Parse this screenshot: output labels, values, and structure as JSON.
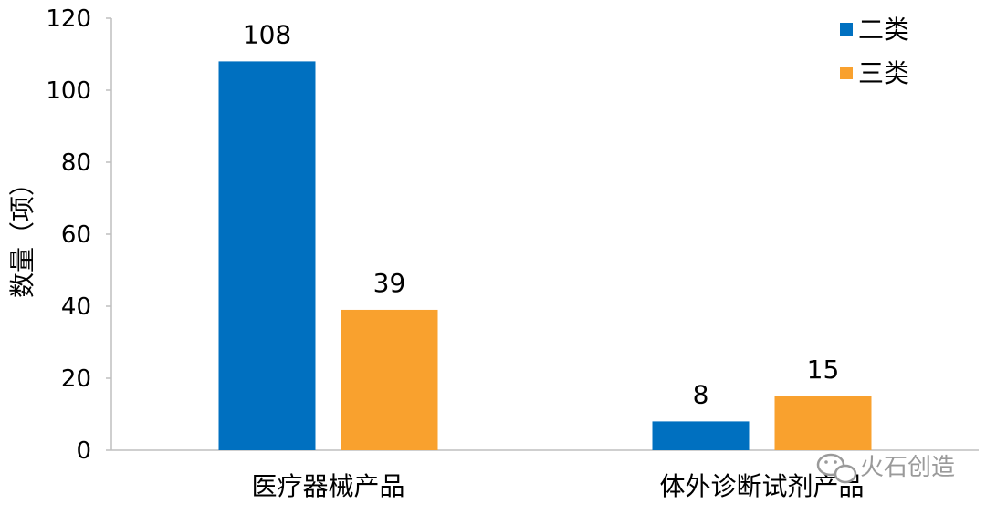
{
  "chart_data": {
    "type": "bar",
    "categories": [
      "医疗器械产品",
      "体外诊断试剂产品"
    ],
    "series": [
      {
        "name": "二类",
        "values": [
          108,
          8
        ],
        "color": "#0070C0"
      },
      {
        "name": "三类",
        "values": [
          39,
          15
        ],
        "color": "#F9A12E"
      }
    ],
    "title": "",
    "xlabel": "",
    "ylabel": "数量（项）",
    "ylim": [
      0,
      120
    ],
    "yticks": [
      0,
      20,
      40,
      60,
      80,
      100,
      120
    ],
    "grid": false,
    "legend_position": "top-right",
    "data_labels": true
  },
  "watermark": {
    "text": "火石创造",
    "icon": "wechat-icon"
  }
}
